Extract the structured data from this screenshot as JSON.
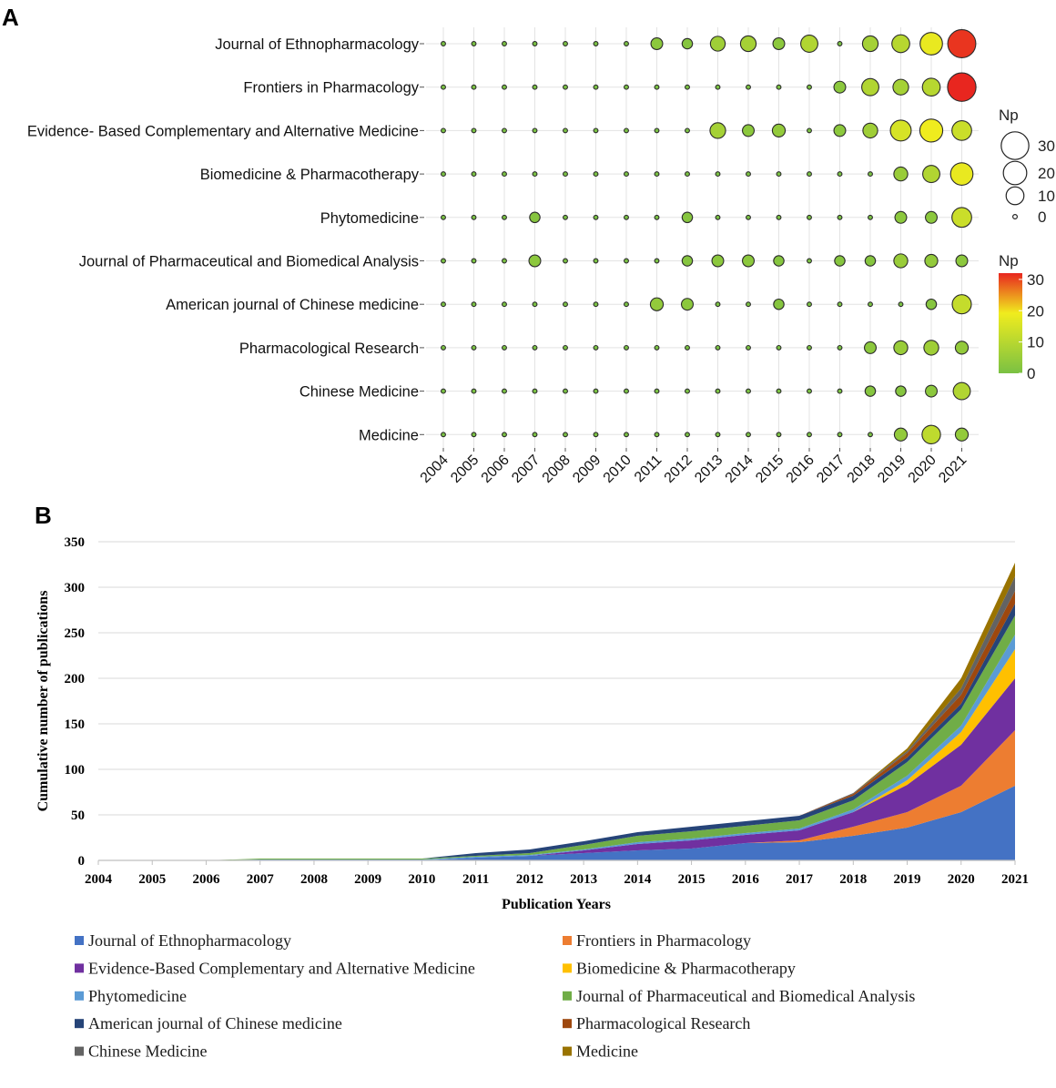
{
  "panels": {
    "a": "A",
    "b": "B"
  },
  "chart_data": [
    {
      "type": "scatter",
      "subtype": "bubble",
      "title": "",
      "years": [
        "2004",
        "2005",
        "2006",
        "2007",
        "2008",
        "2009",
        "2010",
        "2011",
        "2012",
        "2013",
        "2014",
        "2015",
        "2016",
        "2017",
        "2018",
        "2019",
        "2020",
        "2021"
      ],
      "journals": [
        "Journal of Ethnopharmacology",
        "Frontiers in Pharmacology",
        "Evidence- Based Complementary and Alternative Medicine",
        "Biomedicine & Pharmacotherapy",
        "Phytomedicine",
        "Journal of Pharmaceutical and Biomedical Analysis",
        "American journal of Chinese medicine",
        "Pharmacological Research",
        "Chinese Medicine",
        "Medicine"
      ],
      "values": [
        [
          0,
          0,
          0,
          0,
          0,
          0,
          0,
          3,
          2,
          6,
          7,
          3,
          9,
          0,
          7,
          10,
          18,
          31
        ],
        [
          0,
          0,
          0,
          0,
          0,
          0,
          0,
          0,
          0,
          0,
          0,
          0,
          0,
          3,
          9,
          7,
          10,
          32
        ],
        [
          0,
          0,
          0,
          0,
          0,
          0,
          0,
          0,
          0,
          7,
          3,
          4,
          0,
          3,
          6,
          15,
          19,
          13
        ],
        [
          0,
          0,
          0,
          0,
          0,
          0,
          0,
          0,
          0,
          0,
          0,
          0,
          0,
          0,
          0,
          5,
          9,
          18
        ],
        [
          0,
          0,
          0,
          2,
          0,
          0,
          0,
          0,
          2,
          0,
          0,
          0,
          0,
          0,
          0,
          3,
          3,
          13
        ],
        [
          0,
          0,
          0,
          3,
          0,
          0,
          0,
          0,
          2,
          3,
          3,
          2,
          0,
          2,
          2,
          5,
          4,
          3
        ],
        [
          0,
          0,
          0,
          0,
          0,
          0,
          0,
          4,
          3,
          0,
          0,
          2,
          0,
          0,
          0,
          0,
          2,
          12
        ],
        [
          0,
          0,
          0,
          0,
          0,
          0,
          0,
          0,
          0,
          0,
          0,
          0,
          0,
          0,
          3,
          5,
          6,
          4
        ],
        [
          0,
          0,
          0,
          0,
          0,
          0,
          0,
          0,
          0,
          0,
          0,
          0,
          0,
          0,
          2,
          2,
          3,
          9
        ],
        [
          0,
          0,
          0,
          0,
          0,
          0,
          0,
          0,
          0,
          0,
          0,
          0,
          0,
          0,
          0,
          4,
          11,
          4
        ]
      ],
      "size_legend": {
        "title": "Np",
        "values": [
          30,
          20,
          10,
          0
        ]
      },
      "color_legend": {
        "title": "Np",
        "ticks": [
          30,
          20,
          10,
          0
        ],
        "range": [
          0,
          32
        ],
        "colors": [
          "#7ac143",
          "#f0ec1e",
          "#e8261f"
        ]
      }
    },
    {
      "type": "area",
      "stacked": true,
      "xlabel": "Publication Years",
      "ylabel": "Cumulative number of publications",
      "ylim": [
        0,
        350
      ],
      "yticks": [
        "0",
        "50",
        "100",
        "150",
        "200",
        "250",
        "300",
        "350"
      ],
      "x": [
        "2004",
        "2005",
        "2006",
        "2007",
        "2008",
        "2009",
        "2010",
        "2011",
        "2012",
        "2013",
        "2014",
        "2015",
        "2016",
        "2017",
        "2018",
        "2019",
        "2020",
        "2021"
      ],
      "series": [
        {
          "name": "Journal of Ethnopharmacology",
          "color": "#4472c4",
          "values": [
            0,
            0,
            0,
            0,
            0,
            0,
            0,
            3,
            5,
            8,
            11,
            13,
            19,
            20,
            27,
            36,
            53,
            82
          ]
        },
        {
          "name": "Frontiers in Pharmacology",
          "color": "#ed7d31",
          "values": [
            0,
            0,
            0,
            0,
            0,
            0,
            0,
            0,
            0,
            0,
            0,
            0,
            0,
            2,
            10,
            17,
            29,
            61
          ]
        },
        {
          "name": "Evidence-Based Complementary and Alternative Medicine",
          "color": "#7030a0",
          "values": [
            0,
            0,
            0,
            0,
            0,
            0,
            0,
            0,
            0,
            3,
            7,
            9,
            9,
            11,
            16,
            30,
            45,
            57
          ]
        },
        {
          "name": "Biomedicine & Pharmacotherapy",
          "color": "#ffc000",
          "values": [
            0,
            0,
            0,
            0,
            0,
            0,
            0,
            0,
            0,
            0,
            0,
            0,
            0,
            0,
            0,
            5,
            14,
            32
          ]
        },
        {
          "name": "Phytomedicine",
          "color": "#5b9bd5",
          "values": [
            0,
            0,
            0,
            1,
            1,
            1,
            1,
            1,
            1,
            1,
            2,
            2,
            2,
            2,
            3,
            5,
            7,
            16
          ]
        },
        {
          "name": "Journal of Pharmaceutical and Biomedical Analysis",
          "color": "#70ad47",
          "values": [
            0,
            0,
            0,
            1,
            1,
            1,
            1,
            1,
            2,
            5,
            7,
            8,
            8,
            9,
            10,
            15,
            18,
            21
          ]
        },
        {
          "name": "American journal of Chinese medicine",
          "color": "#264478",
          "values": [
            0,
            0,
            0,
            0,
            0,
            0,
            0,
            3,
            4,
            4,
            4,
            5,
            5,
            5,
            5,
            5,
            6,
            13
          ]
        },
        {
          "name": "Pharmacological Research",
          "color": "#9e480e",
          "values": [
            0,
            0,
            0,
            0,
            0,
            0,
            0,
            0,
            0,
            0,
            0,
            0,
            0,
            0,
            2,
            5,
            10,
            14
          ]
        },
        {
          "name": "Chinese Medicine",
          "color": "#636363",
          "values": [
            0,
            0,
            0,
            0,
            0,
            0,
            0,
            0,
            0,
            0,
            0,
            0,
            0,
            0,
            1,
            2,
            7,
            16
          ]
        },
        {
          "name": "Medicine",
          "color": "#997300",
          "values": [
            0,
            0,
            0,
            0,
            0,
            0,
            0,
            0,
            0,
            0,
            0,
            0,
            0,
            0,
            0,
            3,
            11,
            15
          ]
        }
      ]
    }
  ]
}
